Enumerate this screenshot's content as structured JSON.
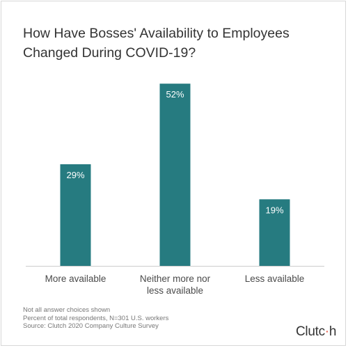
{
  "chart_data": {
    "type": "bar",
    "title_lines": [
      "How Have Bosses' Availability to Employees",
      "Changed During COVID-19?"
    ],
    "categories": [
      [
        "More available"
      ],
      [
        "Neither more nor",
        "less available"
      ],
      [
        "Less available"
      ]
    ],
    "values": [
      29,
      52,
      19
    ],
    "value_labels": [
      "29%",
      "52%",
      "19%"
    ],
    "ylim": [
      0,
      58
    ],
    "grid": false,
    "legend": "none",
    "bar_color": "#267b80",
    "axis_color": "#cccccc"
  },
  "footnotes": [
    "Not all answer choices shown",
    "Percent of total respondents, N=301 U.S. workers",
    "Source: Clutch 2020 Company Culture Survey"
  ],
  "logo": {
    "text_main": "Clutc",
    "text_accent": "·",
    "text_end": "h"
  }
}
